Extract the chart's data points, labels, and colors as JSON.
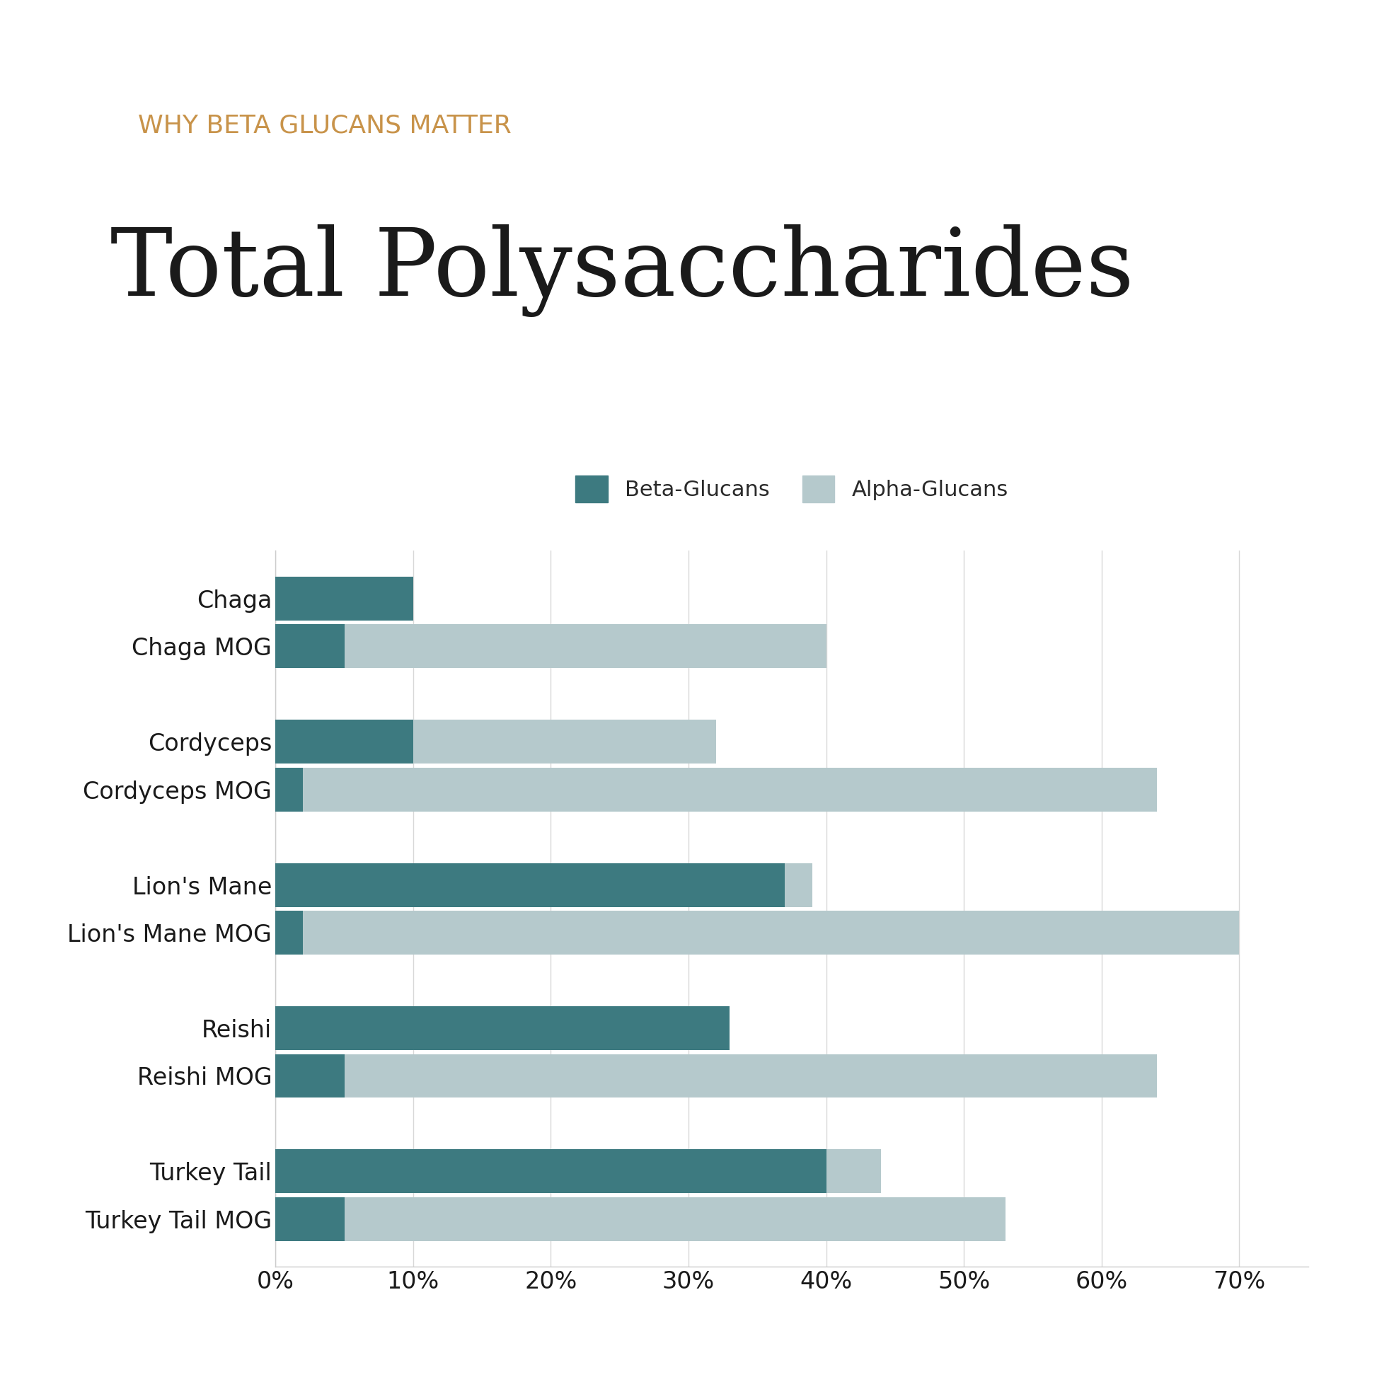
{
  "subtitle": "WHY BETA GLUCANS MATTER",
  "title": "Total Polysaccharides",
  "subtitle_color": "#C8934A",
  "title_color": "#1a1a1a",
  "subtitle_fontsize": 26,
  "title_fontsize": 95,
  "background_color": "#ffffff",
  "beta_color": "#3d7a80",
  "alpha_color": "#b5c9cc",
  "legend_fontsize": 22,
  "tick_fontsize": 24,
  "label_fontsize": 24,
  "categories": [
    "Chaga",
    "Chaga MOG",
    "Cordyceps",
    "Cordyceps MOG",
    "Lion's Mane",
    "Lion's Mane MOG",
    "Reishi",
    "Reishi MOG",
    "Turkey Tail",
    "Turkey Tail MOG"
  ],
  "beta_values": [
    10,
    5,
    10,
    2,
    37,
    2,
    33,
    5,
    40,
    5
  ],
  "alpha_values": [
    0,
    35,
    22,
    62,
    2,
    68,
    0,
    59,
    4,
    48
  ],
  "xlim": [
    0,
    75
  ],
  "xticks": [
    0,
    10,
    20,
    30,
    40,
    50,
    60,
    70
  ],
  "xtick_labels": [
    "0%",
    "10%",
    "20%",
    "30%",
    "40%",
    "50%",
    "60%",
    "70%"
  ],
  "bar_height": 0.55,
  "grid_color": "#d8d8d8",
  "spine_color": "#cccccc"
}
